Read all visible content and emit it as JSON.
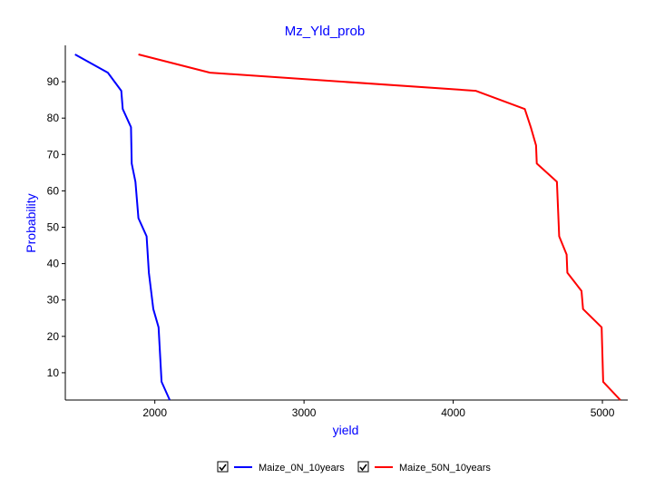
{
  "chart_data": {
    "type": "line",
    "title": "Mz_Yld_prob",
    "xlabel": "yield",
    "ylabel": "Probability",
    "xlim": [
      1400,
      5170
    ],
    "ylim": [
      2.5,
      100
    ],
    "xticks": [
      "2000",
      "3000",
      "4000",
      "5000"
    ],
    "yticks": [
      "10",
      "20",
      "30",
      "40",
      "50",
      "60",
      "70",
      "80",
      "90"
    ],
    "grid": false,
    "legend_placement": "bottom",
    "series": [
      {
        "name": "Maize_0N_10years",
        "color": "#0000ff",
        "checked": true,
        "points": [
          [
            1465,
            97.5
          ],
          [
            1685,
            92.5
          ],
          [
            1775,
            87.5
          ],
          [
            1785,
            82.5
          ],
          [
            1840,
            77.5
          ],
          [
            1845,
            67.5
          ],
          [
            1870,
            62.5
          ],
          [
            1890,
            52.5
          ],
          [
            1945,
            47.5
          ],
          [
            1960,
            37.5
          ],
          [
            1990,
            27.5
          ],
          [
            2025,
            22.5
          ],
          [
            2045,
            7.5
          ],
          [
            2100,
            2.5
          ]
        ]
      },
      {
        "name": "Maize_50N_10years",
        "color": "#ff0000",
        "checked": true,
        "points": [
          [
            1890,
            97.5
          ],
          [
            2370,
            92.5
          ],
          [
            4150,
            87.5
          ],
          [
            4480,
            82.5
          ],
          [
            4520,
            77.5
          ],
          [
            4555,
            72.5
          ],
          [
            4560,
            67.5
          ],
          [
            4695,
            62.5
          ],
          [
            4710,
            47.5
          ],
          [
            4760,
            42.5
          ],
          [
            4765,
            37.5
          ],
          [
            4860,
            32.5
          ],
          [
            4870,
            27.5
          ],
          [
            4995,
            22.5
          ],
          [
            5005,
            7.5
          ],
          [
            5120,
            2.5
          ]
        ]
      }
    ]
  }
}
